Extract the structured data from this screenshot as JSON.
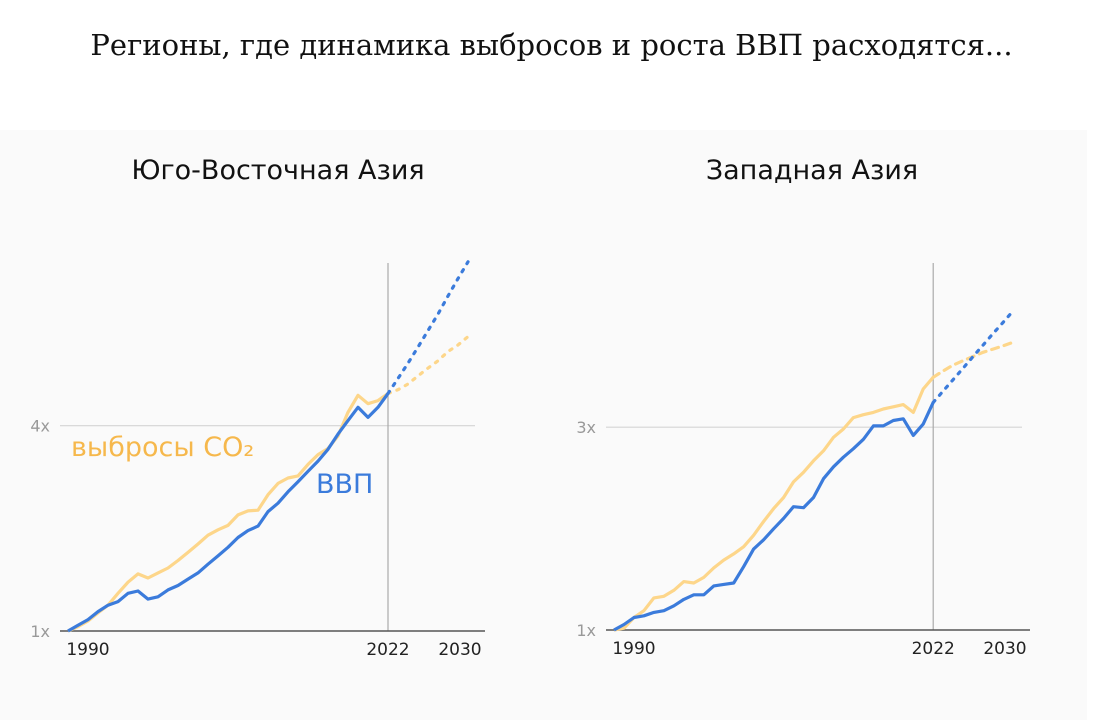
{
  "title": "Регионы, где динамика выбросов и роста ВВП расходятся...",
  "colors": {
    "co2": "#fdd68a",
    "co2_label": "#f6b84c",
    "gdp": "#3b7bdb",
    "panel": "#fafafa"
  },
  "annotations": {
    "co2": "выбросы CO₂",
    "gdp": "ВВП"
  },
  "chart_data": [
    {
      "type": "line",
      "title": "Юго-Восточная Азия",
      "yscale": "log",
      "ylim": [
        1,
        12
      ],
      "xlim": [
        1990,
        2030
      ],
      "y_ticks": [
        {
          "value": 1,
          "label": "1x"
        },
        {
          "value": 4,
          "label": "4x"
        }
      ],
      "x_ticks": [
        {
          "value": 1990,
          "label": "1990"
        },
        {
          "value": 2022,
          "label": "2022"
        },
        {
          "value": 2030,
          "label": "2030"
        }
      ],
      "vertical_marker": 2022,
      "grid": "horizontal at labeled ticks",
      "series": [
        {
          "name": "выбросы CO₂",
          "color": "#fdd68a",
          "x_start": 1990,
          "values": [
            1.0,
            1.03,
            1.07,
            1.13,
            1.19,
            1.29,
            1.39,
            1.47,
            1.43,
            1.48,
            1.53,
            1.61,
            1.7,
            1.8,
            1.91,
            1.98,
            2.04,
            2.19,
            2.25,
            2.26,
            2.51,
            2.71,
            2.81,
            2.85,
            3.08,
            3.29,
            3.43,
            3.73,
            4.38,
            4.91,
            4.64,
            4.74,
            4.97
          ],
          "projection": {
            "x_start": 2022,
            "style": "dotted",
            "values": [
              4.97,
              5.1,
              5.3,
              5.6,
              5.9,
              6.2,
              6.6,
              6.9,
              7.3
            ]
          }
        },
        {
          "name": "ВВП",
          "color": "#3b7bdb",
          "x_start": 1990,
          "values": [
            1.0,
            1.04,
            1.08,
            1.14,
            1.19,
            1.22,
            1.29,
            1.31,
            1.24,
            1.26,
            1.32,
            1.36,
            1.42,
            1.48,
            1.57,
            1.66,
            1.76,
            1.88,
            1.97,
            2.03,
            2.24,
            2.37,
            2.56,
            2.74,
            2.94,
            3.15,
            3.41,
            3.78,
            4.14,
            4.53,
            4.23,
            4.53,
            4.97
          ],
          "projection": {
            "x_start": 2022,
            "style": "dotted",
            "values": [
              4.97,
              5.5,
              6.1,
              6.8,
              7.6,
              8.5,
              9.6,
              10.8,
              12.1
            ]
          }
        }
      ]
    },
    {
      "type": "line",
      "title": "Западная Азия",
      "yscale": "log",
      "ylim": [
        1,
        7.3
      ],
      "xlim": [
        1990,
        2030
      ],
      "y_ticks": [
        {
          "value": 1,
          "label": "1x"
        },
        {
          "value": 3,
          "label": "3x"
        }
      ],
      "x_ticks": [
        {
          "value": 1990,
          "label": "1990"
        },
        {
          "value": 2022,
          "label": "2022"
        },
        {
          "value": 2030,
          "label": "2030"
        }
      ],
      "vertical_marker": 2022,
      "grid": "horizontal at labeled ticks",
      "series": [
        {
          "name": "выбросы CO₂",
          "color": "#fdd68a",
          "x_start": 1990,
          "values": [
            1.0,
            1.01,
            1.07,
            1.11,
            1.19,
            1.2,
            1.24,
            1.3,
            1.29,
            1.33,
            1.4,
            1.46,
            1.51,
            1.57,
            1.67,
            1.8,
            1.93,
            2.05,
            2.23,
            2.35,
            2.5,
            2.64,
            2.84,
            2.97,
            3.16,
            3.21,
            3.25,
            3.31,
            3.35,
            3.39,
            3.25,
            3.69,
            3.93
          ],
          "projection": {
            "x_start": 2022,
            "style": "dashed",
            "values": [
              3.93,
              4.07,
              4.2,
              4.3,
              4.4,
              4.5,
              4.58,
              4.66,
              4.75
            ]
          }
        },
        {
          "name": "ВВП",
          "color": "#3b7bdb",
          "x_start": 1990,
          "values": [
            1.0,
            1.03,
            1.07,
            1.08,
            1.1,
            1.11,
            1.14,
            1.18,
            1.21,
            1.21,
            1.27,
            1.28,
            1.29,
            1.41,
            1.55,
            1.63,
            1.73,
            1.83,
            1.95,
            1.94,
            2.05,
            2.27,
            2.42,
            2.55,
            2.67,
            2.81,
            3.02,
            3.02,
            3.11,
            3.14,
            2.87,
            3.05,
            3.43
          ],
          "projection": {
            "x_start": 2022,
            "style": "dotted",
            "values": [
              3.43,
              3.65,
              3.88,
              4.13,
              4.4,
              4.68,
              4.98,
              5.29,
              5.63
            ]
          }
        }
      ]
    }
  ]
}
